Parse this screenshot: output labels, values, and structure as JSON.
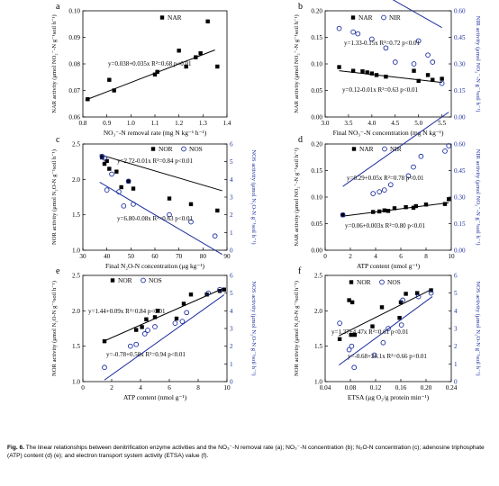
{
  "caption": {
    "label": "Fig. 6.",
    "text": "The linear relationships between denitrification enzyme activities and the NO₃⁻-N removal rate (a); NO₃⁻-N concentration (b); N₂O-N concentration (c); adenosine triphosphate (ATP) content (d) (e); and electron transport system activity (ETSA) value (f)."
  },
  "colors": {
    "left_series": "#000000",
    "right_series": "#1c2ea0"
  },
  "chart_data": [
    {
      "panel": "a",
      "type": "scatter",
      "xlabel": "NO₃⁻-N removal rate (mg N kg⁻¹ h⁻¹)",
      "ylabel": "NAR activity (μmol NO₂⁻-N g⁻¹soil h⁻¹)",
      "xlim": [
        0.8,
        1.4
      ],
      "ylim": [
        0.06,
        0.1
      ],
      "xticks": [
        "0.8",
        "0.9",
        "1.0",
        "1.1",
        "1.2",
        "1.3",
        "1.4"
      ],
      "yticks": [
        "0.06",
        "0.07",
        "0.08",
        "0.09",
        "0.10"
      ],
      "legend": [
        "NAR"
      ],
      "series": [
        {
          "name": "NAR",
          "marker": "square",
          "axis": "left",
          "x": [
            0.82,
            0.91,
            0.93,
            1.1,
            1.11,
            1.2,
            1.23,
            1.27,
            1.29,
            1.32,
            1.36
          ],
          "y": [
            0.0667,
            0.074,
            0.07,
            0.076,
            0.077,
            0.085,
            0.079,
            0.0825,
            0.084,
            0.096,
            0.079
          ],
          "fit": {
            "slope": 0.035,
            "intercept": 0.038,
            "xr": [
              0.81,
              1.35
            ]
          }
        }
      ],
      "annotations": [
        "y=0.038+0.035x R²=0.68 p<0.01"
      ]
    },
    {
      "panel": "b",
      "type": "scatter",
      "xlabel": "Final NO₃⁻-N concentration (mg N kg⁻¹)",
      "ylabel": "NAR activity (μmol NO₂⁻-N g⁻¹soil h⁻¹)",
      "y2label": "NIR activity (μmol NO₂⁻-N g⁻¹soil h⁻¹)",
      "xlim": [
        3.0,
        5.7
      ],
      "ylim": [
        0.0,
        0.2
      ],
      "y2lim": [
        0.0,
        0.6
      ],
      "xticks": [
        "3.0",
        "3.5",
        "4.0",
        "4.5",
        "5.0",
        "5.5"
      ],
      "yticks": [
        "0.00",
        "0.05",
        "0.10",
        "0.15",
        "0.20"
      ],
      "y2ticks": [
        "0.00",
        "0.15",
        "0.30",
        "0.45",
        "0.60"
      ],
      "legend": [
        "NAR",
        "NIR"
      ],
      "series": [
        {
          "name": "NAR",
          "marker": "square",
          "axis": "left",
          "x": [
            3.3,
            3.6,
            3.8,
            3.9,
            4.0,
            4.1,
            4.3,
            4.9,
            5.0,
            5.2,
            5.3,
            5.5
          ],
          "y": [
            0.094,
            0.087,
            0.086,
            0.084,
            0.082,
            0.079,
            0.076,
            0.087,
            0.068,
            0.079,
            0.07,
            0.072
          ],
          "fit": {
            "slope": -0.01,
            "intercept": 0.12,
            "xr": [
              3.3,
              5.5
            ]
          }
        },
        {
          "name": "NIR",
          "marker": "circle",
          "axis": "right",
          "x": [
            3.3,
            3.6,
            3.7,
            4.0,
            4.3,
            4.5,
            4.9,
            5.0,
            5.2,
            5.3,
            5.5
          ],
          "y": [
            0.5,
            0.48,
            0.47,
            0.44,
            0.39,
            0.31,
            0.3,
            0.43,
            0.35,
            0.31,
            0.19
          ],
          "fit": {
            "slope": -0.15,
            "intercept": 1.33,
            "xr": [
              3.3,
              5.5
            ]
          }
        }
      ],
      "annotations": [
        "y=1.33-0.15x R²=0.72 p<0.01",
        "y=0.12-0.01x R²=0.63 p<0.01"
      ]
    },
    {
      "panel": "c",
      "type": "scatter",
      "xlabel": "Final N₂O-N concentration (μg kg⁻¹)",
      "ylabel": "NOR activity (μmol N₂O-N g⁻¹soil h⁻¹)",
      "y2label": "NOS activity (μmol N₂O-N g⁻¹soil h⁻¹)",
      "xlim": [
        30,
        90
      ],
      "ylim": [
        1.0,
        2.5
      ],
      "y2lim": [
        0,
        6
      ],
      "xticks": [
        "30",
        "40",
        "50",
        "60",
        "70",
        "80",
        "90"
      ],
      "yticks": [
        "1.0",
        "1.5",
        "2.0",
        "2.5"
      ],
      "y2ticks": [
        "0",
        "1",
        "2",
        "3",
        "4",
        "5",
        "6"
      ],
      "legend": [
        "NOR",
        "NOS"
      ],
      "series": [
        {
          "name": "NOR",
          "marker": "square",
          "axis": "left",
          "x": [
            38,
            39,
            40,
            41,
            44,
            46,
            49,
            51,
            66,
            75,
            86
          ],
          "y": [
            2.31,
            2.22,
            2.26,
            2.15,
            2.11,
            1.89,
            1.97,
            1.87,
            1.73,
            1.65,
            1.56
          ],
          "fit": {
            "slope": -0.01,
            "intercept": 2.72,
            "xr": [
              37,
              88
            ]
          }
        },
        {
          "name": "NOS",
          "marker": "circle",
          "axis": "right",
          "x": [
            38,
            39,
            40,
            42,
            45,
            47,
            49,
            51,
            66,
            75,
            85
          ],
          "y": [
            5.3,
            5.2,
            3.4,
            4.3,
            3.3,
            2.5,
            3.9,
            2.6,
            2.0,
            1.6,
            0.8
          ],
          "fit": {
            "slope": -0.08,
            "intercept": 6.8,
            "xr": [
              37,
              88
            ]
          }
        }
      ],
      "annotations": [
        "y=2.72-0.01x R²=0.84 p<0.01",
        "y=6.80-0.08x R²=0.63 p<0.01"
      ]
    },
    {
      "panel": "d",
      "type": "scatter",
      "xlabel": "ATP content (nmol g⁻¹)",
      "ylabel": "NAR activity (μmol NO₂⁻-N g⁻¹soil h⁻¹)",
      "y2label": "NIR activity (μmol NO₂⁻-N g⁻¹soil h⁻¹)",
      "xlim": [
        0,
        10
      ],
      "ylim": [
        0.0,
        0.2
      ],
      "y2lim": [
        0.0,
        0.6
      ],
      "xticks": [
        "0",
        "2",
        "4",
        "6",
        "8",
        "10"
      ],
      "yticks": [
        "0.00",
        "0.05",
        "0.10",
        "0.15",
        "0.20"
      ],
      "y2ticks": [
        "0.00",
        "0.15",
        "0.30",
        "0.45",
        "0.60"
      ],
      "legend": [
        "NAR",
        "NIR"
      ],
      "series": [
        {
          "name": "NAR",
          "marker": "square",
          "axis": "left",
          "x": [
            1.4,
            3.8,
            4.3,
            4.7,
            5.0,
            5.5,
            6.4,
            7.0,
            7.2,
            8.0,
            9.5,
            9.8
          ],
          "y": [
            0.066,
            0.072,
            0.073,
            0.075,
            0.074,
            0.079,
            0.081,
            0.08,
            0.083,
            0.086,
            0.087,
            0.096
          ],
          "fit": {
            "slope": 0.003,
            "intercept": 0.06,
            "xr": [
              1.4,
              9.8
            ]
          }
        },
        {
          "name": "NIR",
          "marker": "circle",
          "axis": "right",
          "x": [
            1.4,
            3.8,
            4.3,
            4.7,
            5.2,
            6.6,
            7.0,
            7.6,
            9.5,
            9.8
          ],
          "y": [
            0.2,
            0.32,
            0.33,
            0.34,
            0.37,
            0.42,
            0.47,
            0.53,
            0.56,
            0.59
          ],
          "fit": {
            "slope": 0.05,
            "intercept": 0.29,
            "xr": [
              1.4,
              9.8
            ]
          }
        }
      ],
      "annotations": [
        "y=0.29+0.05x R²=0.78 p<0.01",
        "y=0.06+0.003x R²=0.80 p<0.01"
      ]
    },
    {
      "panel": "e",
      "type": "scatter",
      "xlabel": "ATP content (nmol g⁻¹)",
      "ylabel": "NOR activity (μmol N₂O-N g⁻¹soil h⁻¹)",
      "y2label": "NOS activity (μmol N₂O-N g⁻¹soil h⁻¹)",
      "xlim": [
        0,
        10
      ],
      "ylim": [
        1.0,
        2.5
      ],
      "y2lim": [
        0,
        6
      ],
      "xticks": [
        "0",
        "2",
        "4",
        "6",
        "8",
        "10"
      ],
      "yticks": [
        "1.0",
        "1.5",
        "2.0",
        "2.5"
      ],
      "y2ticks": [
        "0",
        "1",
        "2",
        "3",
        "4",
        "5",
        "6"
      ],
      "legend": [
        "NOR",
        "NOS"
      ],
      "series": [
        {
          "name": "NOR",
          "marker": "square",
          "axis": "left",
          "x": [
            1.5,
            3.7,
            4.1,
            4.4,
            5.0,
            5.2,
            6.5,
            7.0,
            7.5,
            8.6,
            9.5,
            9.8
          ],
          "y": [
            1.57,
            1.73,
            1.77,
            1.88,
            1.91,
            2.0,
            1.89,
            2.1,
            2.23,
            2.23,
            2.28,
            2.3
          ],
          "fit": {
            "slope": 0.09,
            "intercept": 1.44,
            "xr": [
              1.5,
              9.8
            ]
          }
        },
        {
          "name": "NOS",
          "marker": "circle",
          "axis": "right",
          "x": [
            1.5,
            3.3,
            3.7,
            4.3,
            4.5,
            5.0,
            6.4,
            6.9,
            7.2,
            8.7,
            9.5
          ],
          "y": [
            0.8,
            2.0,
            2.1,
            2.7,
            2.9,
            3.1,
            3.3,
            3.4,
            3.9,
            5.0,
            5.2
          ],
          "fit": {
            "slope": 0.58,
            "intercept": -0.78,
            "xr": [
              1.5,
              9.8
            ]
          }
        }
      ],
      "annotations": [
        "y=1.44+0.09x R²=0.84 p<0.01",
        "y=-0.78+0.58x R²=0.94 p<0.01"
      ]
    },
    {
      "panel": "f",
      "type": "scatter",
      "xlabel": "ETSA (μg O₂/g protein min⁻¹)",
      "ylabel": "NOR activity (μmol N₂O-N g⁻¹soil h⁻¹)",
      "y2label": "NOS activity (μmol N₂O-N g⁻¹soil h⁻¹)",
      "xlim": [
        0.04,
        0.24
      ],
      "ylim": [
        1.0,
        2.5
      ],
      "y2lim": [
        0,
        6
      ],
      "xticks": [
        "0.04",
        "0.08",
        "0.12",
        "0.16",
        "0.20",
        "0.24"
      ],
      "yticks": [
        "1.0",
        "1.5",
        "2.0",
        "2.5"
      ],
      "y2ticks": [
        "0",
        "1",
        "2",
        "3",
        "4",
        "5",
        "6"
      ],
      "legend": [
        "NOR",
        "NOS"
      ],
      "series": [
        {
          "name": "NOR",
          "marker": "square",
          "axis": "left",
          "x": [
            0.063,
            0.078,
            0.081,
            0.083,
            0.087,
            0.115,
            0.13,
            0.158,
            0.16,
            0.168,
            0.186,
            0.208
          ],
          "y": [
            1.6,
            2.15,
            1.66,
            2.12,
            1.66,
            1.78,
            2.05,
            1.9,
            2.12,
            2.24,
            2.25,
            2.29
          ],
          "fit": {
            "slope": 4.47,
            "intercept": 1.37,
            "xr": [
              0.062,
              0.21
            ]
          }
        },
        {
          "name": "NOS",
          "marker": "circle",
          "axis": "right",
          "x": [
            0.063,
            0.078,
            0.082,
            0.086,
            0.118,
            0.132,
            0.14,
            0.161,
            0.163,
            0.188,
            0.208
          ],
          "y": [
            3.3,
            1.8,
            2.0,
            0.8,
            1.5,
            2.2,
            3.0,
            3.2,
            4.6,
            4.8,
            5.0
          ],
          "fit": {
            "slope": 26.1,
            "intercept": -0.68,
            "xr": [
              0.062,
              0.21
            ]
          }
        }
      ],
      "annotations": [
        "y=1.37+4.47x R²=0.61 p<0.01",
        "y=-0.68+26.1x R²=0.66 p<0.01"
      ]
    }
  ]
}
